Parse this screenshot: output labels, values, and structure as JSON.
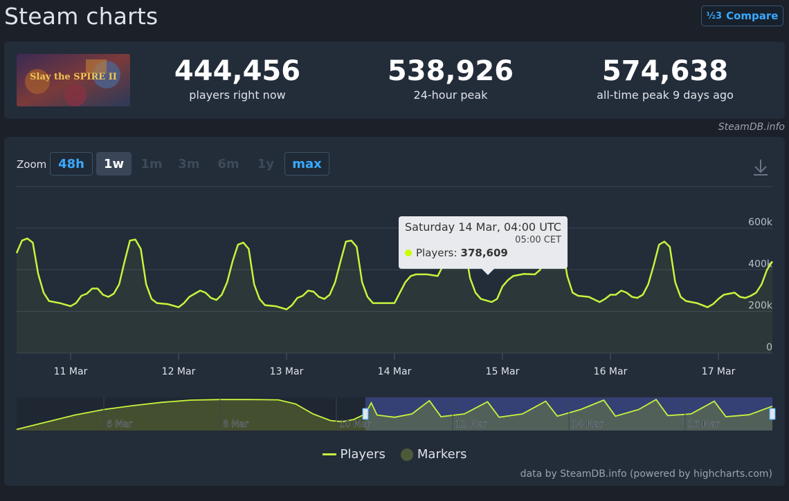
{
  "header": {
    "title": "Steam charts",
    "compare_label": "Compare",
    "compare_icon": "½3"
  },
  "game": {
    "thumbnail_text": "Slay the SPIRE II"
  },
  "stats": [
    {
      "value": "444,456",
      "label": "players right now"
    },
    {
      "value": "538,926",
      "label": "24-hour peak"
    },
    {
      "value": "574,638",
      "label": "all-time peak 9 days ago"
    }
  ],
  "credit_top": "SteamDB.info",
  "zoom": {
    "label": "Zoom",
    "buttons": [
      "48h",
      "1w",
      "1m",
      "3m",
      "6m",
      "1y",
      "max"
    ],
    "active": "1w"
  },
  "tooltip": {
    "date": "Saturday 14 Mar, 04:00 UTC",
    "sub": "05:00 CET",
    "series": "Players:",
    "value": "378,609"
  },
  "legend": {
    "players": "Players",
    "markers": "Markers"
  },
  "credit_bottom": "data by SteamDB.info (powered by highcharts.com)",
  "colors": {
    "line": "#c8f53c",
    "accent": "#3aa8ff",
    "navigator_fill": "#3a4680"
  },
  "chart_data": {
    "type": "line",
    "y_ticks": [
      "0",
      "200k",
      "400k",
      "600k"
    ],
    "ylim": [
      0,
      600000
    ],
    "x_ticks": [
      "11 Mar",
      "12 Mar",
      "13 Mar",
      "14 Mar",
      "15 Mar",
      "16 Mar",
      "17 Mar"
    ],
    "x_day_start": 10.5,
    "x_day_end": 17.5,
    "series": [
      {
        "name": "Players",
        "points": [
          [
            10.5,
            480000
          ],
          [
            10.55,
            540000
          ],
          [
            10.6,
            550000
          ],
          [
            10.65,
            530000
          ],
          [
            10.7,
            380000
          ],
          [
            10.75,
            290000
          ],
          [
            10.8,
            250000
          ],
          [
            10.9,
            240000
          ],
          [
            11.0,
            225000
          ],
          [
            11.05,
            240000
          ],
          [
            11.1,
            275000
          ],
          [
            11.15,
            285000
          ],
          [
            11.2,
            310000
          ],
          [
            11.25,
            310000
          ],
          [
            11.3,
            280000
          ],
          [
            11.35,
            270000
          ],
          [
            11.4,
            285000
          ],
          [
            11.45,
            330000
          ],
          [
            11.5,
            440000
          ],
          [
            11.55,
            540000
          ],
          [
            11.6,
            545000
          ],
          [
            11.65,
            500000
          ],
          [
            11.7,
            330000
          ],
          [
            11.75,
            260000
          ],
          [
            11.8,
            240000
          ],
          [
            11.9,
            235000
          ],
          [
            12.0,
            220000
          ],
          [
            12.05,
            240000
          ],
          [
            12.1,
            270000
          ],
          [
            12.15,
            285000
          ],
          [
            12.2,
            300000
          ],
          [
            12.25,
            290000
          ],
          [
            12.3,
            265000
          ],
          [
            12.35,
            255000
          ],
          [
            12.4,
            280000
          ],
          [
            12.45,
            340000
          ],
          [
            12.5,
            440000
          ],
          [
            12.55,
            520000
          ],
          [
            12.6,
            530000
          ],
          [
            12.65,
            500000
          ],
          [
            12.7,
            330000
          ],
          [
            12.75,
            260000
          ],
          [
            12.8,
            230000
          ],
          [
            12.9,
            225000
          ],
          [
            13.0,
            210000
          ],
          [
            13.05,
            230000
          ],
          [
            13.1,
            265000
          ],
          [
            13.15,
            275000
          ],
          [
            13.2,
            300000
          ],
          [
            13.25,
            295000
          ],
          [
            13.3,
            270000
          ],
          [
            13.35,
            260000
          ],
          [
            13.4,
            280000
          ],
          [
            13.45,
            340000
          ],
          [
            13.5,
            440000
          ],
          [
            13.55,
            535000
          ],
          [
            13.6,
            540000
          ],
          [
            13.65,
            510000
          ],
          [
            13.7,
            340000
          ],
          [
            13.75,
            270000
          ],
          [
            13.8,
            240000
          ],
          [
            13.9,
            240000
          ],
          [
            14.0,
            240000
          ],
          [
            14.05,
            290000
          ],
          [
            14.1,
            340000
          ],
          [
            14.15,
            370000
          ],
          [
            14.2,
            378000
          ],
          [
            14.3,
            378000
          ],
          [
            14.4,
            370000
          ],
          [
            14.45,
            420000
          ],
          [
            14.5,
            500000
          ],
          [
            14.55,
            550000
          ],
          [
            14.6,
            555000
          ],
          [
            14.65,
            510000
          ],
          [
            14.7,
            360000
          ],
          [
            14.75,
            290000
          ],
          [
            14.8,
            260000
          ],
          [
            14.9,
            245000
          ],
          [
            14.95,
            260000
          ],
          [
            15.0,
            320000
          ],
          [
            15.05,
            350000
          ],
          [
            15.1,
            370000
          ],
          [
            15.2,
            380000
          ],
          [
            15.3,
            378000
          ],
          [
            15.35,
            400000
          ],
          [
            15.4,
            480000
          ],
          [
            15.45,
            550000
          ],
          [
            15.5,
            560000
          ],
          [
            15.55,
            530000
          ],
          [
            15.6,
            370000
          ],
          [
            15.65,
            290000
          ],
          [
            15.7,
            275000
          ],
          [
            15.8,
            270000
          ],
          [
            15.9,
            245000
          ],
          [
            15.95,
            260000
          ],
          [
            16.0,
            280000
          ],
          [
            16.05,
            280000
          ],
          [
            16.1,
            300000
          ],
          [
            16.15,
            290000
          ],
          [
            16.2,
            270000
          ],
          [
            16.25,
            265000
          ],
          [
            16.3,
            280000
          ],
          [
            16.35,
            330000
          ],
          [
            16.4,
            420000
          ],
          [
            16.45,
            520000
          ],
          [
            16.5,
            535000
          ],
          [
            16.55,
            510000
          ],
          [
            16.6,
            340000
          ],
          [
            16.65,
            270000
          ],
          [
            16.7,
            250000
          ],
          [
            16.8,
            240000
          ],
          [
            16.9,
            220000
          ],
          [
            16.95,
            235000
          ],
          [
            17.0,
            260000
          ],
          [
            17.05,
            280000
          ],
          [
            17.1,
            285000
          ],
          [
            17.15,
            290000
          ],
          [
            17.2,
            270000
          ],
          [
            17.25,
            265000
          ],
          [
            17.3,
            275000
          ],
          [
            17.35,
            290000
          ],
          [
            17.4,
            330000
          ],
          [
            17.45,
            400000
          ],
          [
            17.5,
            440000
          ]
        ]
      }
    ],
    "navigator": {
      "x_ticks": [
        "6 Mar",
        "8 Mar",
        "10 Mar",
        "12 Mar",
        "14 Mar",
        "16 Mar"
      ],
      "x_day_start": 4.5,
      "x_day_end": 17.5,
      "selected_range": [
        10.5,
        17.5
      ],
      "points": [
        [
          4.5,
          20000
        ],
        [
          5.0,
          150000
        ],
        [
          5.5,
          280000
        ],
        [
          6.0,
          380000
        ],
        [
          6.5,
          450000
        ],
        [
          7.0,
          510000
        ],
        [
          7.5,
          550000
        ],
        [
          8.0,
          560000
        ],
        [
          8.5,
          560000
        ],
        [
          9.0,
          555000
        ],
        [
          9.3,
          480000
        ],
        [
          9.6,
          300000
        ],
        [
          9.9,
          180000
        ],
        [
          10.1,
          160000
        ],
        [
          10.3,
          200000
        ],
        [
          10.5,
          300000
        ],
        [
          10.6,
          500000
        ],
        [
          10.7,
          280000
        ],
        [
          11.0,
          240000
        ],
        [
          11.3,
          300000
        ],
        [
          11.6,
          540000
        ],
        [
          11.8,
          250000
        ],
        [
          12.2,
          300000
        ],
        [
          12.6,
          520000
        ],
        [
          12.8,
          240000
        ],
        [
          13.2,
          300000
        ],
        [
          13.6,
          530000
        ],
        [
          13.8,
          260000
        ],
        [
          14.2,
          380000
        ],
        [
          14.6,
          550000
        ],
        [
          14.8,
          260000
        ],
        [
          15.2,
          380000
        ],
        [
          15.5,
          560000
        ],
        [
          15.7,
          270000
        ],
        [
          16.1,
          300000
        ],
        [
          16.5,
          530000
        ],
        [
          16.7,
          250000
        ],
        [
          17.1,
          285000
        ],
        [
          17.5,
          440000
        ]
      ]
    }
  }
}
